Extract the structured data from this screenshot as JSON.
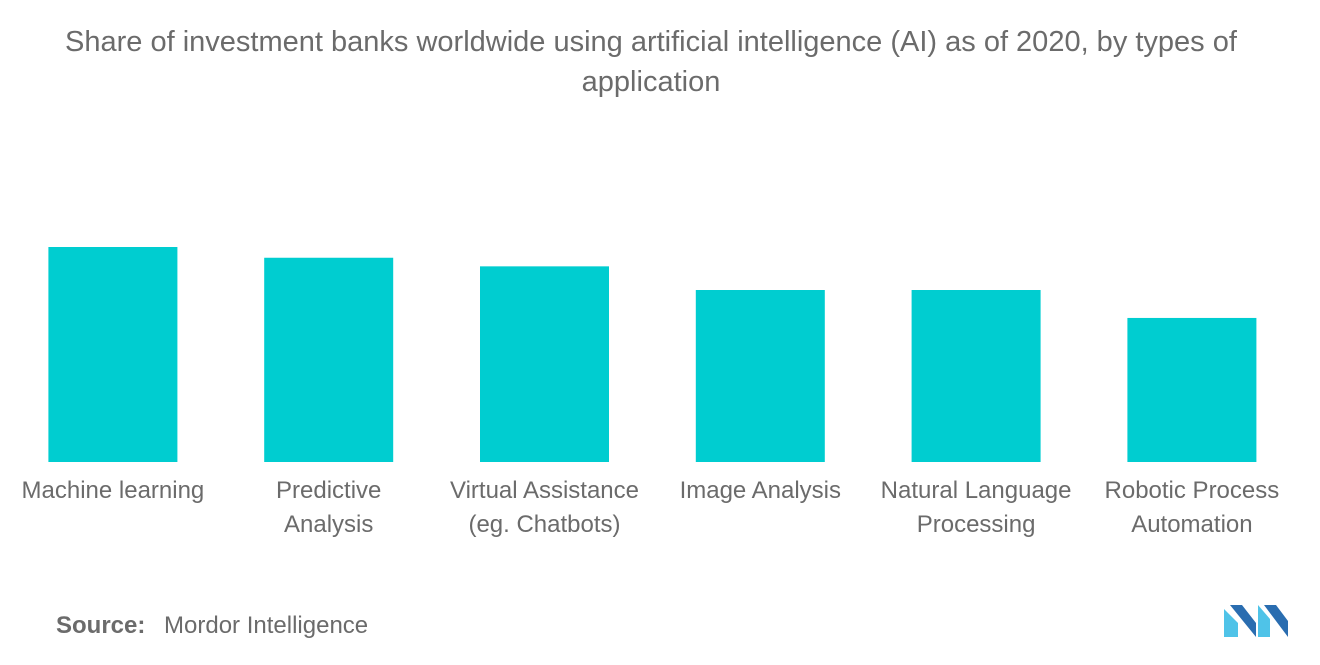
{
  "title": "Share of investment banks worldwide using artificial intelligence (AI) as of 2020, by types of application",
  "source": {
    "label": "Source:",
    "value": "Mordor Intelligence"
  },
  "colors": {
    "bar": "#00CDD0",
    "text": "#6b6b6b",
    "logo_dark": "#2a6db0",
    "logo_light": "#4fc3e8"
  },
  "logo": {
    "name": "mordor-intelligence-logo"
  },
  "chart_data": {
    "type": "bar",
    "categories": [
      [
        "Machine learning"
      ],
      [
        "Predictive",
        "Analysis"
      ],
      [
        "Virtual Assistance",
        "(eg. Chatbots)"
      ],
      [
        "Image Analysis"
      ],
      [
        "Natural Language",
        "Processing"
      ],
      [
        "Robotic Process",
        "Automation"
      ]
    ],
    "values": [
      100,
      95,
      91,
      80,
      80,
      67
    ],
    "ylim": [
      0,
      100
    ],
    "grid": false,
    "legend": "none"
  }
}
